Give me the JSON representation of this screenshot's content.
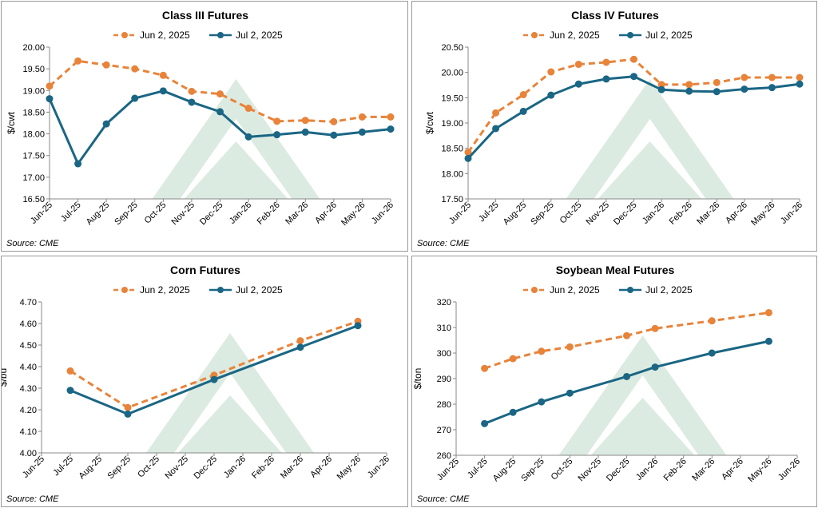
{
  "colors": {
    "series_jun": "#e8833a",
    "series_jul": "#1a6684",
    "watermark": "#dcebe1",
    "axis": "#888888"
  },
  "chart_data": [
    {
      "type": "line",
      "title": "Class III Futures",
      "ylabel": "$/cwt",
      "source": "Source: CME",
      "ylim": [
        16.5,
        20.0
      ],
      "yticks": [
        "16.50",
        "17.00",
        "17.50",
        "18.00",
        "18.50",
        "19.00",
        "19.50",
        "20.00"
      ],
      "categories": [
        "Jun-25",
        "Jul-25",
        "Aug-25",
        "Sep-25",
        "Oct-25",
        "Nov-25",
        "Dec-25",
        "Jan-26",
        "Feb-26",
        "Mar-26",
        "Apr-26",
        "May-26",
        "Jun-26"
      ],
      "legend_position": "top",
      "series": [
        {
          "name": "Jun 2, 2025",
          "style": "dashed",
          "values": [
            19.1,
            19.68,
            19.59,
            19.5,
            19.35,
            18.98,
            18.92,
            18.59,
            18.29,
            18.31,
            18.28,
            18.39,
            18.39
          ]
        },
        {
          "name": "Jul 2, 2025",
          "style": "solid",
          "values": [
            18.81,
            17.31,
            18.23,
            18.82,
            18.99,
            18.73,
            18.51,
            17.93,
            17.98,
            18.04,
            17.97,
            18.04,
            18.11
          ]
        }
      ]
    },
    {
      "type": "line",
      "title": "Class IV Futures",
      "ylabel": "$/cwt",
      "source": "Source: CME",
      "ylim": [
        17.5,
        20.5
      ],
      "yticks": [
        "17.50",
        "18.00",
        "18.50",
        "19.00",
        "19.50",
        "20.00",
        "20.50"
      ],
      "categories": [
        "Jun-25",
        "Jul-25",
        "Aug-25",
        "Sep-25",
        "Oct-25",
        "Nov-25",
        "Dec-25",
        "Jan-26",
        "Feb-26",
        "Mar-26",
        "Apr-26",
        "May-26",
        "Jun-26"
      ],
      "legend_position": "top",
      "series": [
        {
          "name": "Jun 2, 2025",
          "style": "dashed",
          "values": [
            18.42,
            19.2,
            19.56,
            20.01,
            20.16,
            20.2,
            20.26,
            19.76,
            19.76,
            19.8,
            19.9,
            19.9,
            19.9
          ]
        },
        {
          "name": "Jul 2, 2025",
          "style": "solid",
          "values": [
            18.3,
            18.89,
            19.23,
            19.55,
            19.77,
            19.87,
            19.92,
            19.66,
            19.63,
            19.62,
            19.67,
            19.7,
            19.77
          ]
        }
      ]
    },
    {
      "type": "line",
      "title": "Corn Futures",
      "ylabel": "$/bu",
      "source": "Source: CME",
      "ylim": [
        4.0,
        4.7
      ],
      "yticks": [
        "4.00",
        "4.10",
        "4.20",
        "4.30",
        "4.40",
        "4.50",
        "4.60",
        "4.70"
      ],
      "categories": [
        "Jun-25",
        "Jul-25",
        "Aug-25",
        "Sep-25",
        "Oct-25",
        "Nov-25",
        "Dec-25",
        "Jan-26",
        "Feb-26",
        "Mar-26",
        "Apr-26",
        "May-26",
        "Jun-26"
      ],
      "legend_position": "top",
      "series": [
        {
          "name": "Jun 2, 2025",
          "style": "dashed",
          "values": [
            null,
            4.38,
            null,
            4.21,
            null,
            null,
            4.36,
            null,
            null,
            4.52,
            null,
            4.61,
            null
          ]
        },
        {
          "name": "Jul 2, 2025",
          "style": "solid",
          "values": [
            null,
            4.29,
            null,
            4.18,
            null,
            null,
            4.34,
            null,
            null,
            4.49,
            null,
            4.59,
            null
          ]
        }
      ]
    },
    {
      "type": "line",
      "title": "Soybean Meal Futures",
      "ylabel": "$/ton",
      "source": "Source: CME",
      "ylim": [
        260,
        320
      ],
      "yticks": [
        "260",
        "270",
        "280",
        "290",
        "300",
        "310",
        "320"
      ],
      "categories": [
        "Jun-25",
        "Jul-25",
        "Aug-25",
        "Sep-25",
        "Oct-25",
        "Nov-25",
        "Dec-25",
        "Jan-26",
        "Feb-26",
        "Mar-26",
        "Apr-26",
        "May-26",
        "Jun-26"
      ],
      "legend_position": "top",
      "series": [
        {
          "name": "Jun 2, 2025",
          "style": "dashed",
          "values": [
            null,
            294.0,
            297.8,
            300.7,
            302.4,
            null,
            306.8,
            309.6,
            null,
            312.6,
            null,
            315.8,
            null
          ]
        },
        {
          "name": "Jul 2, 2025",
          "style": "solid",
          "values": [
            null,
            272.4,
            276.8,
            280.9,
            284.3,
            null,
            290.8,
            294.5,
            null,
            300.0,
            null,
            304.6,
            null
          ]
        }
      ]
    }
  ]
}
